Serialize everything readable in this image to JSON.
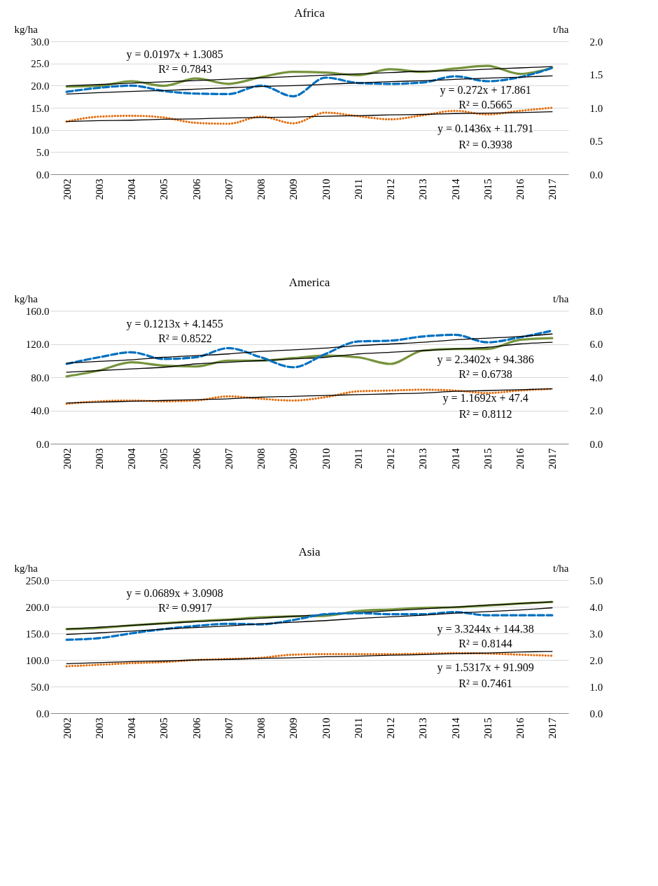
{
  "chart_data": [
    {
      "type": "line",
      "title": "Africa",
      "ylabel": "kg/ha",
      "y2label": "t/ha",
      "grid": "y",
      "categories": [
        "2002",
        "2003",
        "2004",
        "2005",
        "2006",
        "2007",
        "2008",
        "2009",
        "2010",
        "2011",
        "2012",
        "2013",
        "2014",
        "2015",
        "2016",
        "2017"
      ],
      "ylim": [
        0,
        30
      ],
      "yticks": [
        {
          "value": 0,
          "label": "0.0"
        },
        {
          "value": 5,
          "label": "5.0"
        },
        {
          "value": 10,
          "label": "10.0"
        },
        {
          "value": 15,
          "label": "15.0"
        },
        {
          "value": 20,
          "label": "20.0"
        },
        {
          "value": 25,
          "label": "25.0"
        },
        {
          "value": 30,
          "label": "30.0"
        }
      ],
      "y2lim": [
        0,
        2
      ],
      "y2ticks": [
        {
          "value": 0,
          "label": "0.0"
        },
        {
          "value": 0.5,
          "label": "0.5"
        },
        {
          "value": 1,
          "label": "1.0"
        },
        {
          "value": 1.5,
          "label": "1.5"
        },
        {
          "value": 2,
          "label": "2.0"
        }
      ],
      "series": [
        {
          "color": "#0070c0",
          "line_style": "dashed",
          "values": [
            18.6,
            19.5,
            20.0,
            18.8,
            18.2,
            18.1,
            20.0,
            17.6,
            21.8,
            20.6,
            20.4,
            20.7,
            22.1,
            21.0,
            21.9,
            24.0
          ]
        },
        {
          "color": "#e46c0a",
          "line_style": "dotted",
          "values": [
            11.9,
            13.0,
            13.2,
            12.8,
            11.6,
            11.4,
            13.0,
            11.5,
            13.9,
            13.1,
            12.4,
            13.3,
            14.3,
            13.5,
            14.3,
            15.0
          ]
        },
        {
          "color": "#000000",
          "line_style": "solid",
          "type": "line",
          "values": [
            18.1,
            18.4,
            18.7,
            18.9,
            19.2,
            19.5,
            19.8,
            20.0,
            20.3,
            20.6,
            20.9,
            21.1,
            21.4,
            21.7,
            21.9,
            22.2
          ]
        },
        {
          "color": "#000000",
          "line_style": "solid",
          "type": "line",
          "values": [
            11.9,
            12.1,
            12.2,
            12.4,
            12.5,
            12.7,
            12.8,
            12.9,
            13.1,
            13.2,
            13.4,
            13.5,
            13.7,
            13.8,
            13.9,
            14.1
          ]
        },
        {
          "color": "#76933c",
          "line_style": "solid",
          "axis": "y2",
          "values": [
            1.32,
            1.33,
            1.4,
            1.33,
            1.44,
            1.36,
            1.46,
            1.54,
            1.53,
            1.49,
            1.58,
            1.54,
            1.59,
            1.63,
            1.51,
            1.6
          ]
        },
        {
          "color": "#000000",
          "line_style": "solid",
          "type": "line",
          "axis": "y2",
          "values": [
            1.33,
            1.35,
            1.37,
            1.39,
            1.41,
            1.43,
            1.45,
            1.47,
            1.49,
            1.51,
            1.53,
            1.55,
            1.56,
            1.58,
            1.6,
            1.62
          ]
        }
      ],
      "annotations": [
        "y = 0.0197x + 1.3085",
        "R² = 0.7843",
        "y = 0.272x + 17.861",
        "R² = 0.5665",
        "y = 0.1436x + 11.791",
        "R² = 0.3938"
      ]
    },
    {
      "type": "line",
      "title": "America",
      "ylabel": "kg/ha",
      "y2label": "t/ha",
      "grid": "y",
      "categories": [
        "2002",
        "2003",
        "2004",
        "2005",
        "2006",
        "2007",
        "2008",
        "2009",
        "2010",
        "2011",
        "2012",
        "2013",
        "2014",
        "2015",
        "2016",
        "2017"
      ],
      "ylim": [
        0,
        160
      ],
      "yticks": [
        {
          "value": 0,
          "label": "0.0"
        },
        {
          "value": 40,
          "label": "40.0"
        },
        {
          "value": 80,
          "label": "80.0"
        },
        {
          "value": 120,
          "label": "120.0"
        },
        {
          "value": 160,
          "label": "160.0"
        }
      ],
      "y2lim": [
        0,
        8
      ],
      "y2ticks": [
        {
          "value": 0,
          "label": "0.0"
        },
        {
          "value": 2,
          "label": "2.0"
        },
        {
          "value": 4,
          "label": "4.0"
        },
        {
          "value": 6,
          "label": "6.0"
        },
        {
          "value": 8,
          "label": "8.0"
        }
      ],
      "series": [
        {
          "color": "#0070c0",
          "line_style": "dashed",
          "values": [
            96,
            104,
            110,
            102,
            104,
            115,
            104,
            92,
            108,
            123,
            124,
            129,
            131,
            122,
            128,
            136
          ]
        },
        {
          "color": "#e46c0a",
          "line_style": "dotted",
          "values": [
            48,
            51,
            52,
            51,
            52,
            57,
            54,
            52,
            56,
            63,
            64,
            65,
            64,
            61,
            64,
            66
          ]
        },
        {
          "color": "#000000",
          "line_style": "solid",
          "type": "line",
          "values": [
            97,
            99,
            101,
            104,
            106,
            108,
            111,
            113,
            115,
            118,
            120,
            122,
            125,
            127,
            129,
            132
          ]
        },
        {
          "color": "#000000",
          "line_style": "solid",
          "type": "line",
          "values": [
            49,
            50,
            51,
            52,
            53,
            54,
            56,
            57,
            58,
            59,
            60,
            61,
            63,
            64,
            65,
            66
          ]
        },
        {
          "color": "#76933c",
          "line_style": "solid",
          "axis": "y2",
          "values": [
            4.05,
            4.4,
            4.9,
            4.7,
            4.65,
            5.0,
            5.0,
            5.15,
            5.3,
            5.2,
            4.8,
            5.6,
            5.7,
            5.7,
            6.25,
            6.35
          ]
        },
        {
          "color": "#000000",
          "line_style": "solid",
          "type": "line",
          "axis": "y2",
          "values": [
            4.3,
            4.4,
            4.5,
            4.6,
            4.8,
            4.9,
            5.0,
            5.1,
            5.2,
            5.4,
            5.5,
            5.6,
            5.7,
            5.8,
            6.0,
            6.1
          ]
        }
      ],
      "annotations": [
        "y = 0.1213x + 4.1455",
        "R² = 0.8522",
        "y = 2.3402x + 94.386",
        "R² = 0.6738",
        "y = 1.1692x + 47.4",
        "R² = 0.8112"
      ]
    },
    {
      "type": "line",
      "title": "Asia",
      "ylabel": "kg/ha",
      "y2label": "t/ha",
      "grid": "y",
      "categories": [
        "2002",
        "2003",
        "2004",
        "2005",
        "2006",
        "2007",
        "2008",
        "2009",
        "2010",
        "2011",
        "2012",
        "2013",
        "2014",
        "2015",
        "2016",
        "2017"
      ],
      "ylim": [
        0,
        250
      ],
      "yticks": [
        {
          "value": 0,
          "label": "0.0"
        },
        {
          "value": 50,
          "label": "50.0"
        },
        {
          "value": 100,
          "label": "100.0"
        },
        {
          "value": 150,
          "label": "150.0"
        },
        {
          "value": 200,
          "label": "200.0"
        },
        {
          "value": 250,
          "label": "250.0"
        }
      ],
      "y2lim": [
        0,
        5
      ],
      "y2ticks": [
        {
          "value": 0,
          "label": "0.0"
        },
        {
          "value": 1,
          "label": "1.0"
        },
        {
          "value": 2,
          "label": "2.0"
        },
        {
          "value": 3,
          "label": "3.0"
        },
        {
          "value": 4,
          "label": "4.0"
        },
        {
          "value": 5,
          "label": "5.0"
        }
      ],
      "series": [
        {
          "color": "#0070c0",
          "line_style": "dashed",
          "values": [
            138,
            141,
            150,
            158,
            164,
            168,
            167,
            175,
            186,
            188,
            186,
            186,
            190,
            184,
            184,
            184
          ]
        },
        {
          "color": "#e46c0a",
          "line_style": "dotted",
          "values": [
            88,
            91,
            94,
            96,
            100,
            102,
            104,
            110,
            111,
            111,
            111,
            112,
            113,
            112,
            110,
            108
          ]
        },
        {
          "color": "#000000",
          "line_style": "solid",
          "type": "line",
          "values": [
            148,
            151,
            154,
            158,
            161,
            164,
            168,
            171,
            174,
            178,
            181,
            184,
            188,
            191,
            194,
            198
          ]
        },
        {
          "color": "#000000",
          "line_style": "solid",
          "type": "line",
          "values": [
            93,
            95,
            97,
            98,
            100,
            101,
            103,
            104,
            106,
            107,
            109,
            110,
            112,
            113,
            115,
            116
          ]
        },
        {
          "color": "#76933c",
          "line_style": "solid",
          "axis": "y2",
          "values": [
            3.16,
            3.2,
            3.3,
            3.38,
            3.46,
            3.52,
            3.6,
            3.64,
            3.66,
            3.84,
            3.9,
            3.96,
            3.98,
            4.05,
            4.12,
            4.18
          ]
        },
        {
          "color": "#000000",
          "line_style": "solid",
          "type": "line",
          "axis": "y2",
          "values": [
            3.16,
            3.23,
            3.3,
            3.37,
            3.44,
            3.5,
            3.57,
            3.64,
            3.71,
            3.78,
            3.85,
            3.92,
            3.99,
            4.06,
            4.12,
            4.19
          ]
        }
      ],
      "annotations": [
        "y = 0.0689x + 3.0908",
        "R² = 0.9917",
        "y = 3.3244x + 144.38",
        "R² = 0.8144",
        "y = 1.5317x + 91.909",
        "R² = 0.7461"
      ]
    }
  ]
}
